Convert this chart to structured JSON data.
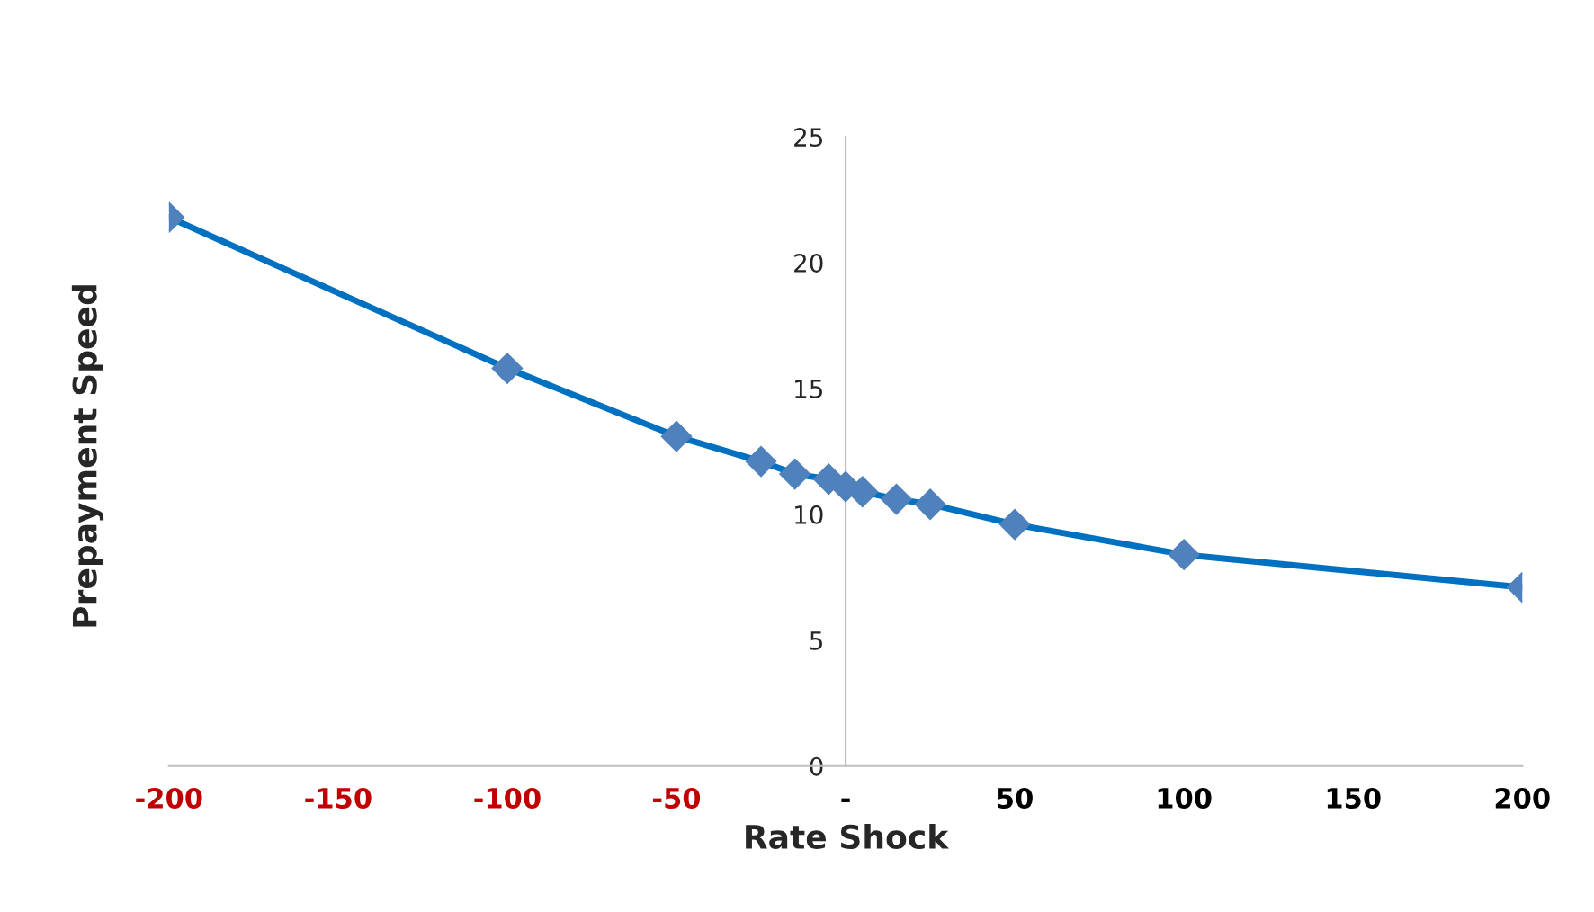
{
  "chart_data": {
    "type": "line",
    "xlabel": "Rate Shock",
    "ylabel": "Prepayment Speed",
    "x": [
      -200,
      -100,
      -50,
      -25,
      -15,
      -5,
      0,
      5,
      15,
      25,
      50,
      100,
      200
    ],
    "series": [
      {
        "color": "#4f81bd",
        "values": [
          21.8,
          15.8,
          13.1,
          12.1,
          11.6,
          11.4,
          11.1,
          10.9,
          10.6,
          10.4,
          9.6,
          8.4,
          7.1
        ]
      }
    ],
    "xlim": [
      -200,
      200
    ],
    "xticks": [
      -200,
      -150,
      -100,
      -50,
      {
        "value": 0,
        "label": "-"
      },
      50,
      100,
      150,
      200
    ],
    "ylim": [
      0,
      25
    ],
    "yticks": [
      0,
      5,
      10,
      15,
      20,
      25
    ],
    "marker": "diamond",
    "line_style": "solid",
    "grid": false,
    "legend": false
  }
}
